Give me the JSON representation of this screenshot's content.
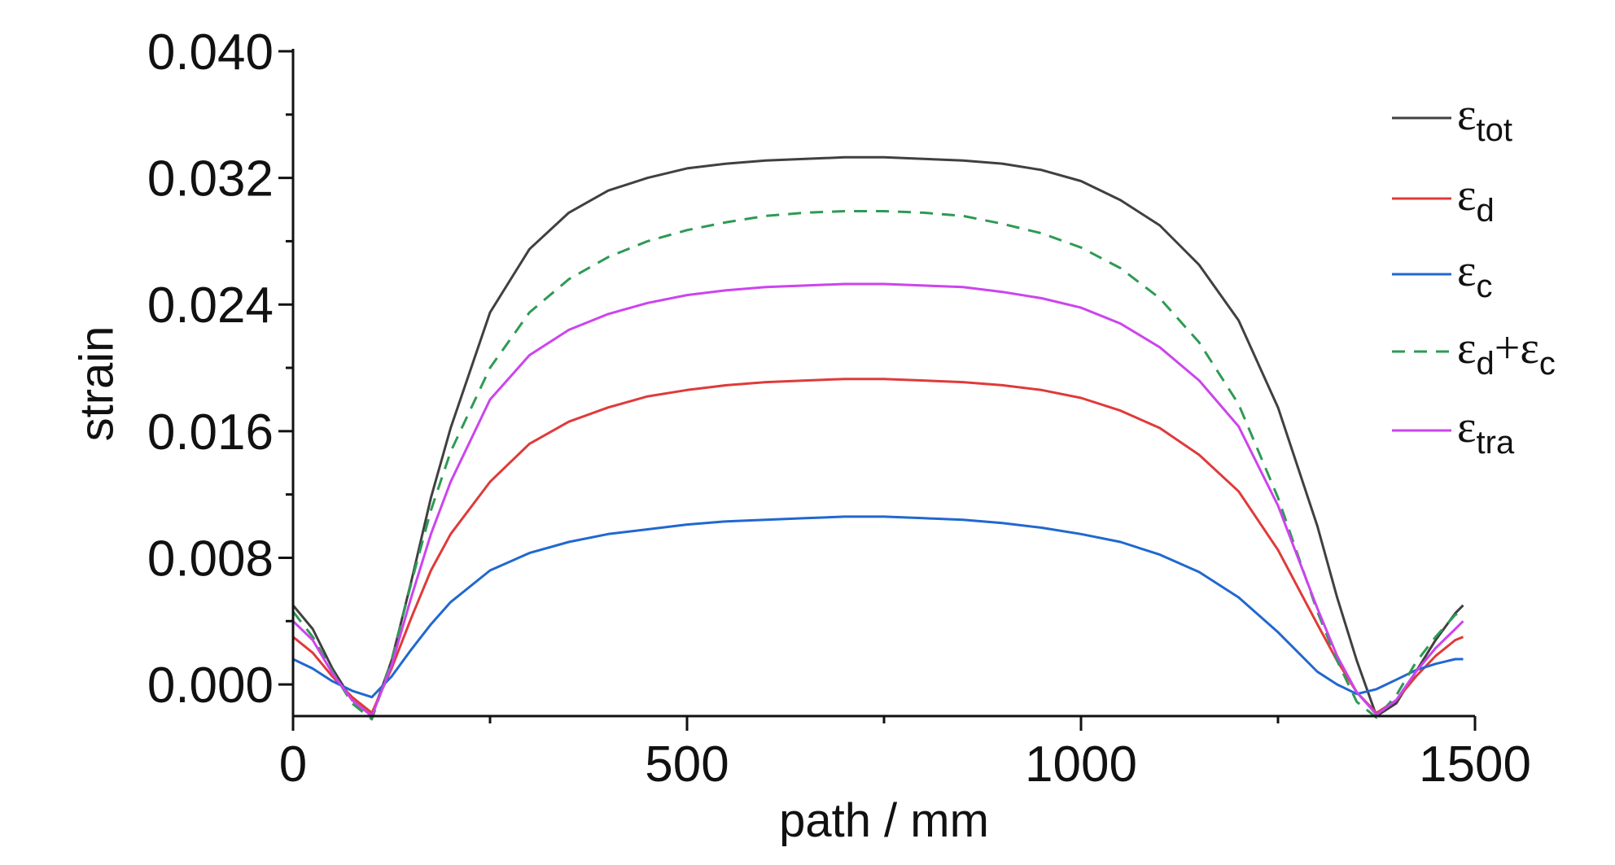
{
  "chart_data": {
    "type": "line",
    "xlabel": "path / mm",
    "ylabel": "strain",
    "xlim": [
      0,
      1500
    ],
    "ylim": [
      -0.002,
      0.04
    ],
    "x_ticks": [
      0,
      500,
      1000,
      1500
    ],
    "x_tick_labels": [
      "0",
      "500",
      "1000",
      "1500"
    ],
    "y_ticks": [
      0.0,
      0.008,
      0.016,
      0.024,
      0.032,
      0.04
    ],
    "y_tick_labels": [
      "0.000",
      "0.008",
      "0.016",
      "0.024",
      "0.032",
      "0.040"
    ],
    "grid": false,
    "legend_position": "top-right",
    "x": [
      0,
      25,
      50,
      75,
      100,
      125,
      150,
      175,
      200,
      250,
      300,
      350,
      400,
      450,
      500,
      550,
      600,
      650,
      700,
      750,
      800,
      850,
      900,
      950,
      1000,
      1050,
      1100,
      1150,
      1200,
      1250,
      1300,
      1325,
      1350,
      1375,
      1400,
      1425,
      1450,
      1475,
      1485
    ],
    "series": [
      {
        "name": "ε_tot",
        "legend_symbol": "ε",
        "legend_sub": "tot",
        "color": "#404040",
        "dash": "",
        "values": [
          0.005,
          0.0035,
          0.001,
          -0.001,
          -0.002,
          0.0015,
          0.0065,
          0.0118,
          0.0162,
          0.0235,
          0.0275,
          0.0298,
          0.0312,
          0.032,
          0.0326,
          0.0329,
          0.0331,
          0.0332,
          0.0333,
          0.0333,
          0.0332,
          0.0331,
          0.0329,
          0.0325,
          0.0318,
          0.0306,
          0.029,
          0.0265,
          0.023,
          0.0175,
          0.01,
          0.0055,
          0.0015,
          -0.002,
          -0.0012,
          0.0008,
          0.0028,
          0.0045,
          0.005
        ]
      },
      {
        "name": "ε_d",
        "legend_symbol": "ε",
        "legend_sub": "d",
        "color": "#e03a3a",
        "dash": "",
        "values": [
          0.003,
          0.002,
          0.0005,
          -0.0008,
          -0.0018,
          0.001,
          0.0042,
          0.0072,
          0.0095,
          0.0128,
          0.0152,
          0.0166,
          0.0175,
          0.0182,
          0.0186,
          0.0189,
          0.0191,
          0.0192,
          0.0193,
          0.0193,
          0.0192,
          0.0191,
          0.0189,
          0.0186,
          0.0181,
          0.0173,
          0.0162,
          0.0145,
          0.0122,
          0.0085,
          0.0038,
          0.0015,
          -0.0005,
          -0.0018,
          -0.001,
          0.0005,
          0.0018,
          0.0028,
          0.003
        ]
      },
      {
        "name": "ε_c",
        "legend_symbol": "ε",
        "legend_sub": "c",
        "color": "#2068d0",
        "dash": "",
        "values": [
          0.0016,
          0.001,
          0.0002,
          -0.0004,
          -0.0008,
          0.0005,
          0.0022,
          0.0038,
          0.0052,
          0.0072,
          0.0083,
          0.009,
          0.0095,
          0.0098,
          0.0101,
          0.0103,
          0.0104,
          0.0105,
          0.0106,
          0.0106,
          0.0105,
          0.0104,
          0.0102,
          0.0099,
          0.0095,
          0.009,
          0.0082,
          0.0071,
          0.0055,
          0.0033,
          0.0008,
          0.0,
          -0.0006,
          -0.0003,
          0.0003,
          0.0009,
          0.0013,
          0.0016,
          0.0016
        ]
      },
      {
        "name": "ε_d+ε_c",
        "legend_symbol": "ε",
        "legend_sub": "d",
        "legend_extra": "+ε",
        "legend_sub2": "c",
        "color": "#2e9a55",
        "dash": "16,11",
        "values": [
          0.0046,
          0.003,
          0.0008,
          -0.0012,
          -0.0022,
          0.0015,
          0.0064,
          0.011,
          0.0147,
          0.02,
          0.0235,
          0.0256,
          0.027,
          0.028,
          0.0287,
          0.0292,
          0.0296,
          0.0298,
          0.0299,
          0.0299,
          0.0298,
          0.0296,
          0.0291,
          0.0285,
          0.0276,
          0.0263,
          0.0244,
          0.0216,
          0.0177,
          0.0118,
          0.0046,
          0.0015,
          -0.0011,
          -0.0021,
          -0.0007,
          0.0014,
          0.003,
          0.0044,
          0.0046
        ]
      },
      {
        "name": "ε_tra",
        "legend_symbol": "ε",
        "legend_sub": "tra",
        "color": "#cc44ee",
        "dash": "",
        "values": [
          0.004,
          0.0028,
          0.0007,
          -0.001,
          -0.002,
          0.0012,
          0.0055,
          0.0095,
          0.0128,
          0.018,
          0.0208,
          0.0224,
          0.0234,
          0.0241,
          0.0246,
          0.0249,
          0.0251,
          0.0252,
          0.0253,
          0.0253,
          0.0252,
          0.0251,
          0.0248,
          0.0244,
          0.0238,
          0.0228,
          0.0213,
          0.0192,
          0.0163,
          0.0113,
          0.0048,
          0.0018,
          -0.0005,
          -0.0019,
          -0.001,
          0.0008,
          0.0023,
          0.0035,
          0.004
        ]
      }
    ]
  }
}
